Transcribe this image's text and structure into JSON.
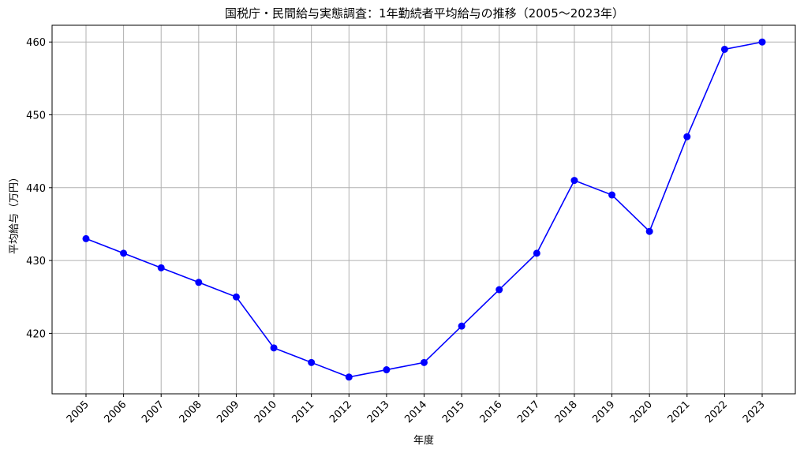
{
  "chart_data": {
    "type": "line",
    "title": "国税庁・民間給与実態調査：1年勤続者平均給与の推移（2005〜2023年）",
    "xlabel": "年度",
    "ylabel": "平均給与（万円）",
    "categories": [
      "2005",
      "2006",
      "2007",
      "2008",
      "2009",
      "2010",
      "2011",
      "2012",
      "2013",
      "2014",
      "2015",
      "2016",
      "2017",
      "2018",
      "2019",
      "2020",
      "2021",
      "2022",
      "2023"
    ],
    "series": [
      {
        "values": [
          433,
          431,
          429,
          427,
          425,
          418,
          416,
          414,
          415,
          416,
          421,
          426,
          431,
          441,
          439,
          434,
          447,
          459,
          460
        ],
        "color": "#0000ff",
        "marker": "circle"
      }
    ],
    "ylim": [
      411.7,
      462.3
    ],
    "yticks": [
      420,
      430,
      440,
      450,
      460
    ],
    "grid": true,
    "colors": {
      "line": "#0000ff",
      "grid": "#b0b0b0",
      "axes": "#000000"
    }
  }
}
